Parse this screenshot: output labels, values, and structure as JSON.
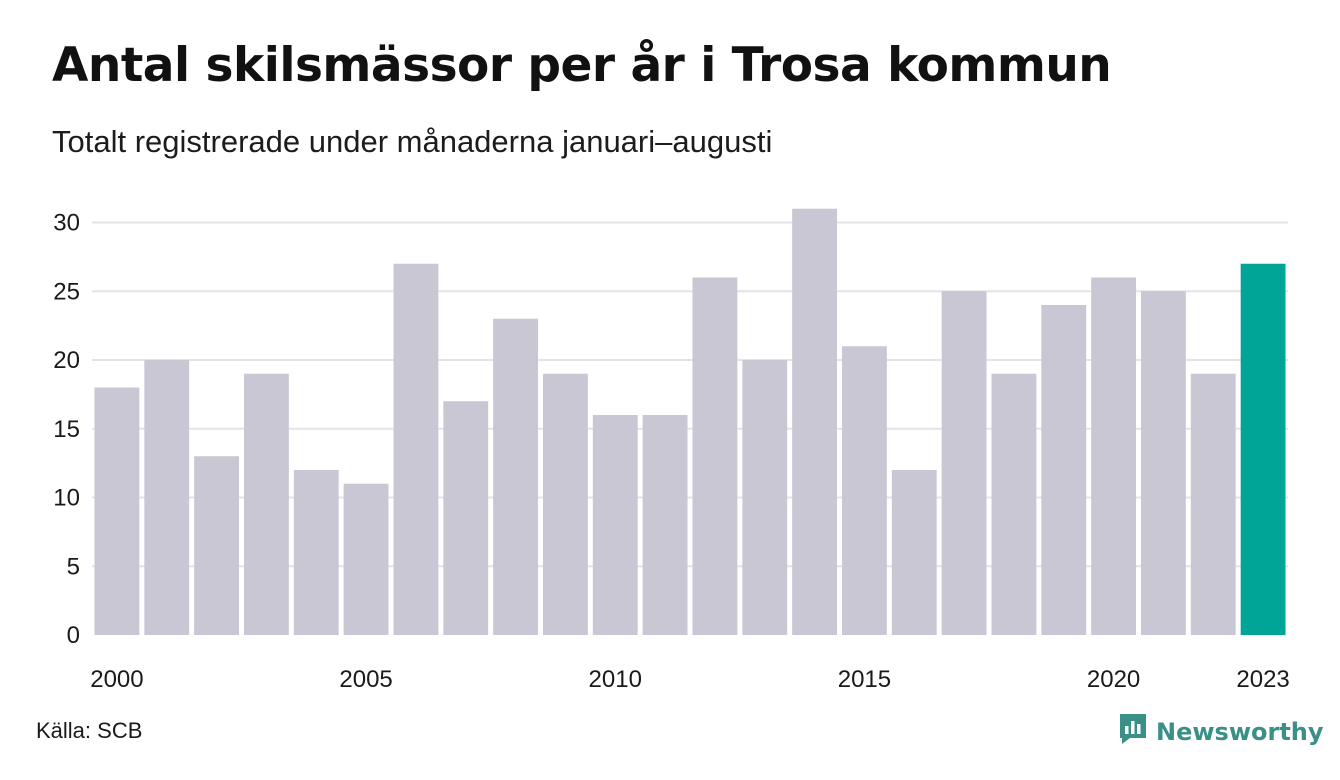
{
  "header": {
    "title": "Antal skilsmässor per år i Trosa kommun",
    "subtitle": "Totalt registrerade under månaderna januari–augusti"
  },
  "footer": {
    "source": "Källa: SCB",
    "brand": "Newsworthy",
    "brand_icon": "newsworthy-logo-icon"
  },
  "colors": {
    "bar": "#c8c7d3",
    "highlight": "#00a598",
    "grid": "#e4e4e8",
    "brand": "#3a8f87"
  },
  "chart_data": {
    "type": "bar",
    "categories": [
      "2000",
      "2001",
      "2002",
      "2003",
      "2004",
      "2005",
      "2006",
      "2007",
      "2008",
      "2009",
      "2010",
      "2011",
      "2012",
      "2013",
      "2014",
      "2015",
      "2016",
      "2017",
      "2018",
      "2019",
      "2020",
      "2021",
      "2022",
      "2023"
    ],
    "values": [
      18,
      20,
      13,
      19,
      12,
      11,
      27,
      17,
      23,
      19,
      16,
      16,
      26,
      20,
      31,
      21,
      12,
      25,
      19,
      24,
      26,
      25,
      19,
      27
    ],
    "x_tick_labels": [
      "2000",
      "2005",
      "2010",
      "2015",
      "2020",
      "2023"
    ],
    "y_ticks": [
      0,
      5,
      10,
      15,
      20,
      25,
      30
    ],
    "ylim": [
      0,
      31
    ],
    "highlight": "2023",
    "grid": true,
    "xlabel": "",
    "ylabel": ""
  }
}
